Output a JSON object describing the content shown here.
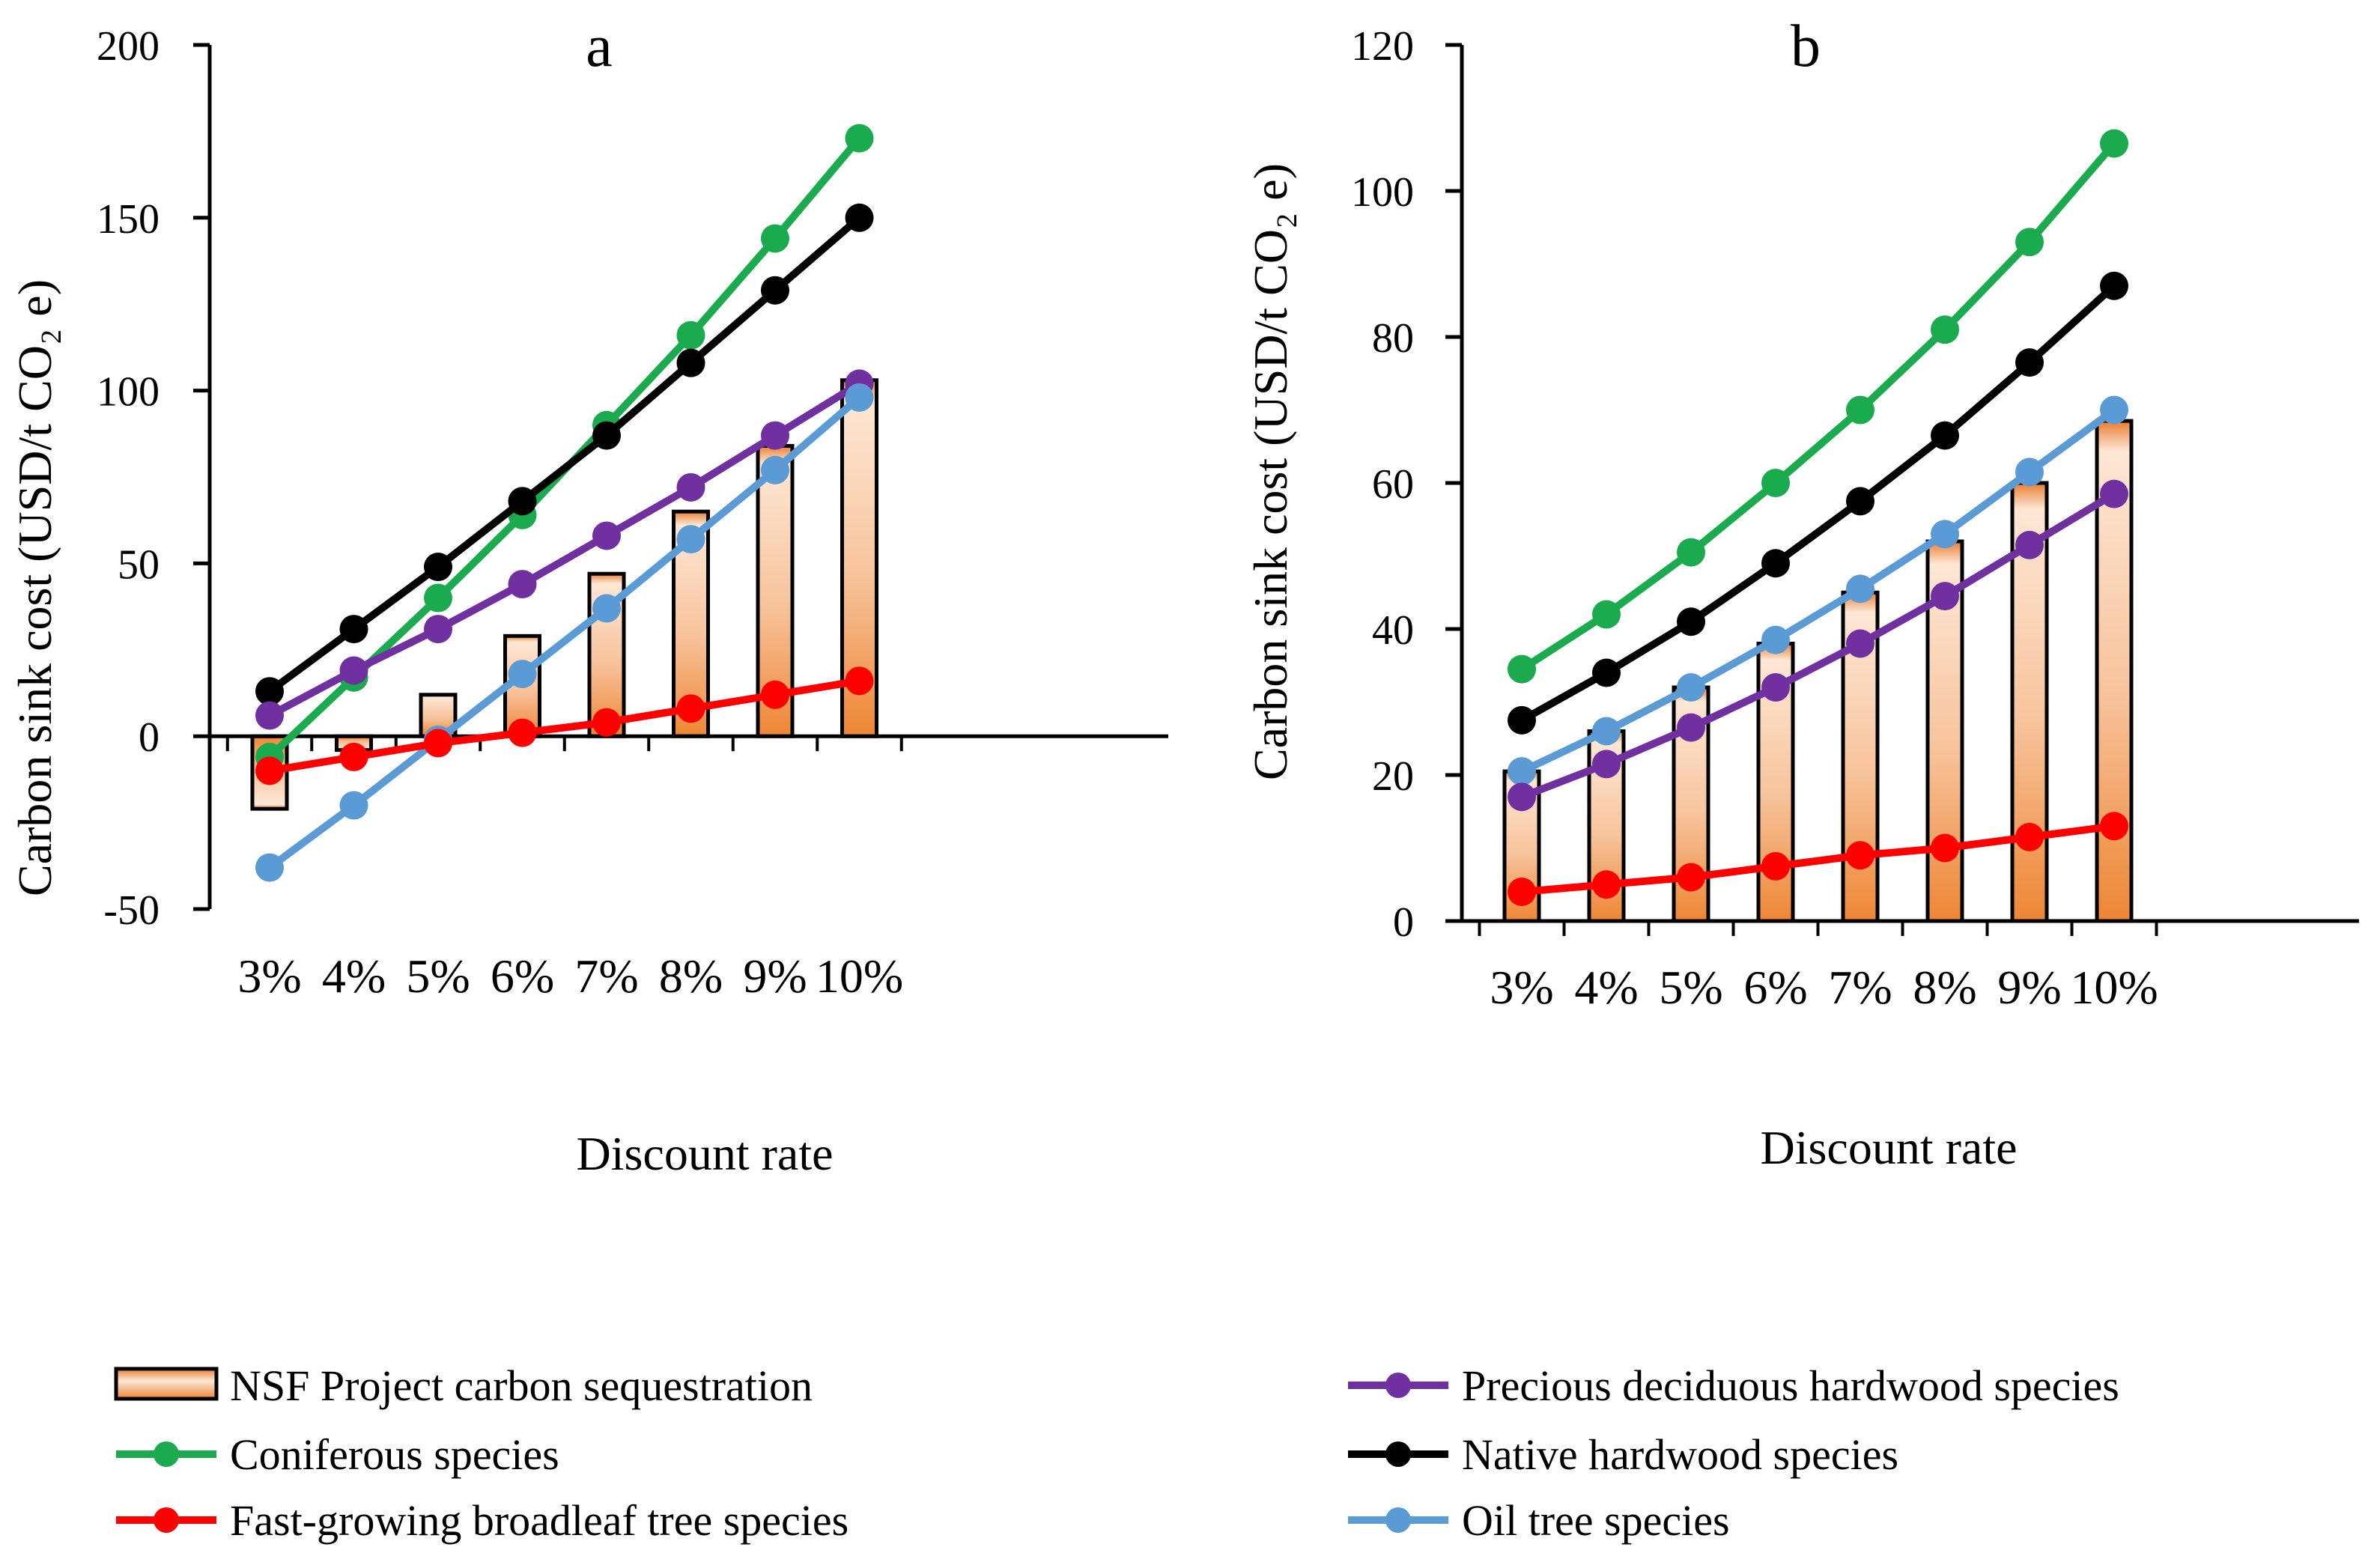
{
  "colors": {
    "bar_top": "#e97d2e",
    "bar_light": "#fde7d5",
    "bar_bottom": "#ee8634",
    "bar_edge": "#000000"
  },
  "legend": {
    "items": [
      {
        "label": "NSF Project carbon sequestration",
        "marker": "bar"
      },
      {
        "label": "Precious deciduous hardwood species",
        "series": "Precious deciduous hardwood species"
      },
      {
        "label": "Coniferous species",
        "series": "Coniferous species"
      },
      {
        "label": "Native hardwood species",
        "series": "Native hardwood species"
      },
      {
        "label": "Fast-growing broadleaf tree species",
        "series": "Fast-growing broadleaf tree species"
      },
      {
        "label": "Oil tree species",
        "series": "Oil tree species"
      }
    ]
  },
  "chart_data": [
    {
      "panel": "a",
      "type": "bar+line",
      "title": "a",
      "xlabel": "Discount rate",
      "ylabel": "Carbon sink cost (USD/t CO₂ e)",
      "ylim": [
        -50,
        200
      ],
      "yticks": [
        -50,
        0,
        50,
        100,
        150,
        200
      ],
      "categories": [
        "3%",
        "4%",
        "5%",
        "6%",
        "7%",
        "8%",
        "9%",
        "10%"
      ],
      "bars": {
        "name": "NSF Project carbon sequestration",
        "values": [
          -21,
          -4,
          12,
          29,
          47,
          65,
          84,
          103
        ]
      },
      "series": [
        {
          "name": "Coniferous species",
          "color": "#1aab4e",
          "values": [
            -6,
            17,
            40,
            64,
            90,
            116,
            144,
            173
          ]
        },
        {
          "name": "Native hardwood species",
          "color": "#000000",
          "values": [
            13,
            31,
            49,
            68,
            87,
            108,
            129,
            150
          ]
        },
        {
          "name": "Precious deciduous hardwood species",
          "color": "#7030a0",
          "values": [
            6,
            19,
            31,
            44,
            58,
            72,
            87,
            102
          ]
        },
        {
          "name": "Oil tree species",
          "color": "#5b9bd5",
          "values": [
            -38,
            -20,
            -1,
            18,
            37,
            57,
            77,
            98
          ]
        },
        {
          "name": "Fast-growing broadleaf tree species",
          "color": "#ff0000",
          "values": [
            -10,
            -6,
            -2,
            1,
            4,
            8,
            12,
            16
          ]
        }
      ]
    },
    {
      "panel": "b",
      "type": "bar+line",
      "title": "b",
      "xlabel": "Discount rate",
      "ylabel": "Carbon sink cost (USD/t CO₂ e)",
      "ylim": [
        0,
        120
      ],
      "yticks": [
        0,
        20,
        40,
        60,
        80,
        100,
        120
      ],
      "categories": [
        "3%",
        "4%",
        "5%",
        "6%",
        "7%",
        "8%",
        "9%",
        "10%"
      ],
      "bars": {
        "name": "NSF Project carbon sequestration",
        "values": [
          20.5,
          26,
          32,
          38,
          45,
          52,
          60,
          68.5
        ]
      },
      "series": [
        {
          "name": "Coniferous species",
          "color": "#1aab4e",
          "values": [
            34.5,
            42,
            50.5,
            60,
            70,
            81,
            93,
            106.5
          ]
        },
        {
          "name": "Native hardwood species",
          "color": "#000000",
          "values": [
            27.5,
            34,
            41,
            49,
            57.5,
            66.5,
            76.5,
            87
          ]
        },
        {
          "name": "Oil tree species",
          "color": "#5b9bd5",
          "values": [
            20.5,
            26,
            32,
            38.5,
            45.5,
            53,
            61.5,
            70
          ]
        },
        {
          "name": "Precious deciduous hardwood species",
          "color": "#7030a0",
          "values": [
            17,
            21.5,
            26.5,
            32,
            38,
            44.5,
            51.5,
            58.5
          ]
        },
        {
          "name": "Fast-growing broadleaf tree species",
          "color": "#ff0000",
          "values": [
            4,
            5,
            6,
            7.5,
            9,
            10,
            11.5,
            13
          ]
        }
      ]
    }
  ]
}
